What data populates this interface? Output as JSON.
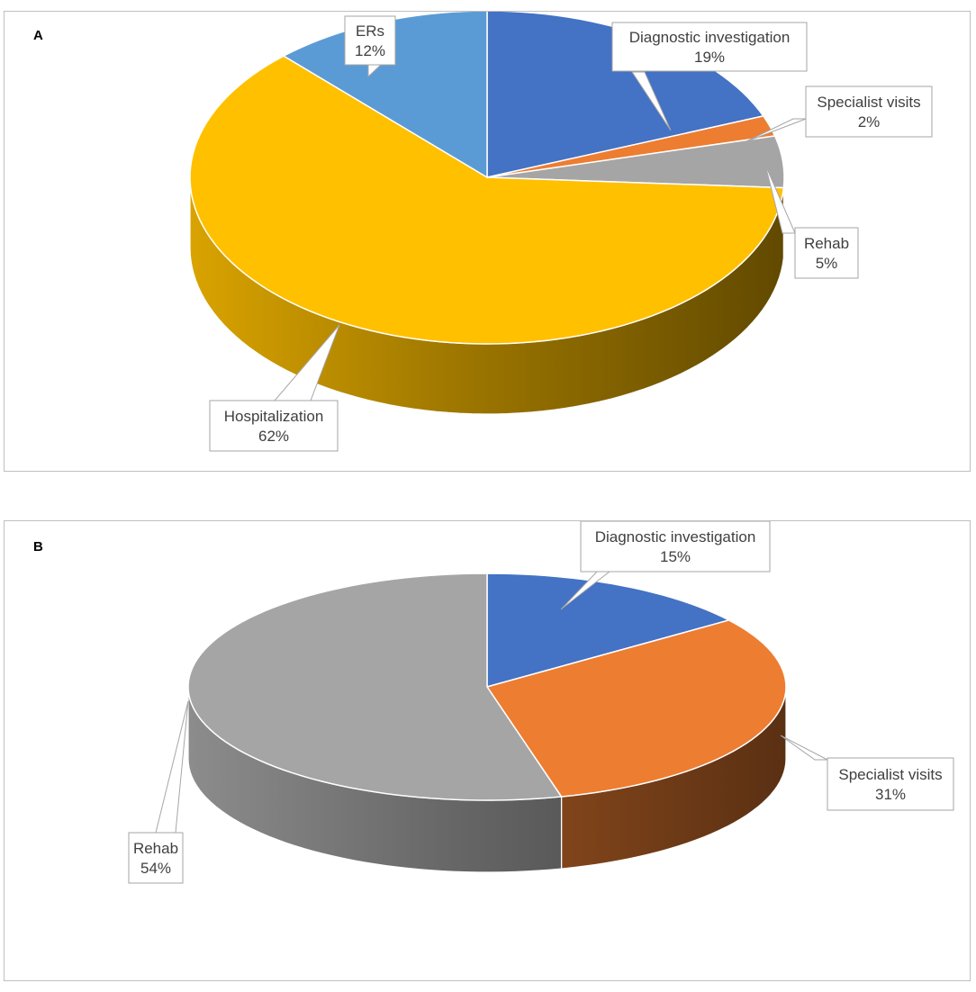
{
  "chart_data": [
    {
      "type": "pie",
      "panel_label": "A",
      "slices": [
        {
          "label": "Diagnostic investigation",
          "value": 19,
          "pct_label": "19%",
          "color": "#4472C4"
        },
        {
          "label": "Specialist visits",
          "value": 2,
          "pct_label": "2%",
          "color": "#ED7D31"
        },
        {
          "label": "Rehab",
          "value": 5,
          "pct_label": "5%",
          "color": "#A5A5A5"
        },
        {
          "label": "Hospitalization",
          "value": 62,
          "pct_label": "62%",
          "color": "#FFC000"
        },
        {
          "label": "ERs",
          "value": 12,
          "pct_label": "12%",
          "color": "#5B9BD5"
        }
      ]
    },
    {
      "type": "pie",
      "panel_label": "B",
      "slices": [
        {
          "label": "Diagnostic investigation",
          "value": 15,
          "pct_label": "15%",
          "color": "#4472C4"
        },
        {
          "label": "Specialist visits",
          "value": 31,
          "pct_label": "31%",
          "color": "#ED7D31"
        },
        {
          "label": "Rehab",
          "value": 54,
          "pct_label": "54%",
          "color": "#A5A5A5"
        }
      ]
    }
  ]
}
